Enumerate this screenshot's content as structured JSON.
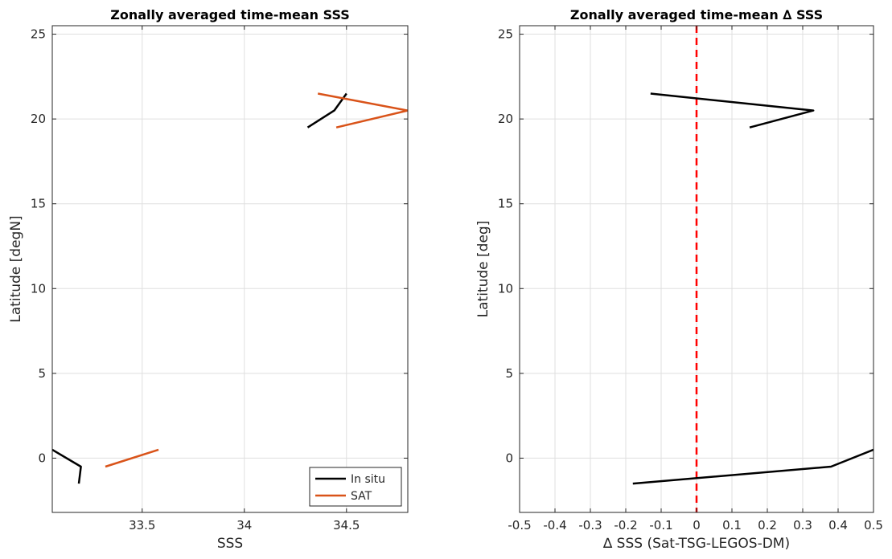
{
  "chart_data": [
    {
      "type": "line",
      "title": "Zonally averaged time-mean SSS",
      "xlabel": "SSS",
      "ylabel": "Latitude [degN]",
      "xlim": [
        33.06,
        34.8
      ],
      "ylim": [
        -3.2,
        25.5
      ],
      "xticks": [
        33.5,
        34,
        34.5
      ],
      "xtick_labels": [
        "33.5",
        "34",
        "34.5"
      ],
      "yticks": [
        0,
        5,
        10,
        15,
        20,
        25
      ],
      "ytick_labels": [
        "0",
        "5",
        "10",
        "15",
        "20",
        "25"
      ],
      "grid": true,
      "legend_position": "bottom-right",
      "series": [
        {
          "name": "In situ",
          "color": "#000000",
          "segments": [
            [
              [
                33.06,
                0.5
              ],
              [
                33.2,
                -0.5
              ],
              [
                33.19,
                -1.5
              ]
            ],
            [
              [
                34.31,
                19.5
              ],
              [
                34.44,
                20.5
              ],
              [
                34.5,
                21.5
              ]
            ]
          ]
        },
        {
          "name": "SAT",
          "color": "#d95319",
          "segments": [
            [
              [
                33.32,
                -0.5
              ],
              [
                33.58,
                0.5
              ]
            ],
            [
              [
                34.45,
                19.5
              ],
              [
                34.8,
                20.5
              ],
              [
                34.36,
                21.5
              ]
            ]
          ]
        }
      ]
    },
    {
      "type": "line",
      "title": "Zonally averaged time-mean ∆ SSS",
      "xlabel": "∆ SSS (Sat-TSG-LEGOS-DM)",
      "ylabel": "Latitude [deg]",
      "xlim": [
        -0.5,
        0.5
      ],
      "ylim": [
        -3.2,
        25.5
      ],
      "xticks": [
        -0.5,
        -0.4,
        -0.3,
        -0.2,
        -0.1,
        0,
        0.1,
        0.2,
        0.3,
        0.4,
        0.5
      ],
      "xtick_labels": [
        "-0.5",
        "-0.4",
        "-0.3",
        "-0.2",
        "-0.1",
        "0",
        "0.1",
        "0.2",
        "0.3",
        "0.4",
        "0.5"
      ],
      "yticks": [
        0,
        5,
        10,
        15,
        20,
        25
      ],
      "ytick_labels": [
        "0",
        "5",
        "10",
        "15",
        "20",
        "25"
      ],
      "grid": true,
      "reference_line": {
        "x": 0,
        "color": "#ff0000",
        "style": "dashed"
      },
      "series": [
        {
          "color": "#000000",
          "segments": [
            [
              [
                0.5,
                0.5
              ],
              [
                0.38,
                -0.5
              ],
              [
                -0.18,
                -1.5
              ]
            ],
            [
              [
                0.15,
                19.5
              ],
              [
                0.33,
                20.5
              ],
              [
                -0.13,
                21.5
              ]
            ]
          ]
        }
      ]
    }
  ]
}
